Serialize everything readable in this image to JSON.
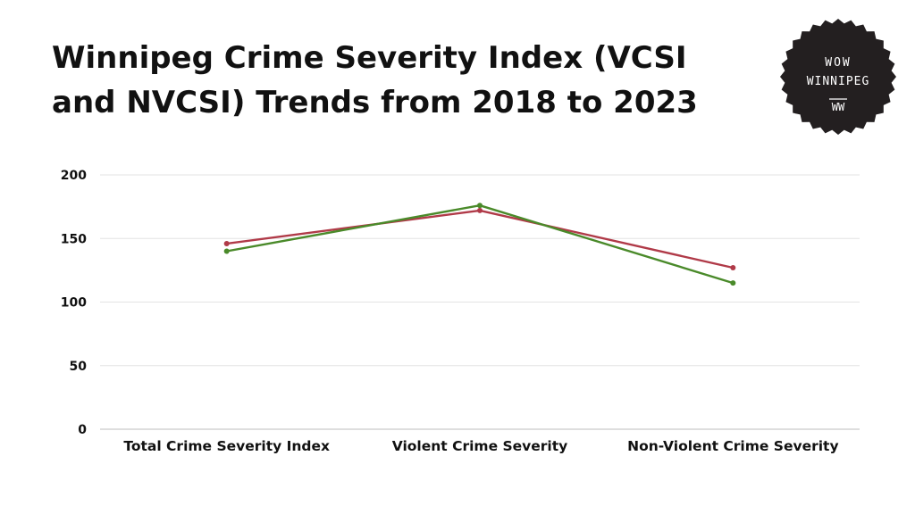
{
  "chart_data": {
    "type": "line",
    "title": "Winnipeg Crime Severity Index (VCSI and NVCSI) Trends from 2018 to 2023",
    "xlabel": "",
    "ylabel": "",
    "categories": [
      "Total Crime Severity Index",
      "Violent Crime Severity",
      "Non-Violent Crime Severity"
    ],
    "ylim": [
      0,
      200
    ],
    "yticks": [
      0,
      50,
      100,
      150,
      200
    ],
    "grid": true,
    "series": [
      {
        "color": "#b03a48",
        "values": [
          146,
          172,
          127
        ]
      },
      {
        "color": "#4a8a2a",
        "values": [
          140,
          176,
          115
        ]
      }
    ]
  },
  "badge": {
    "line1": "WOW",
    "line2": "WINNIPEG",
    "line3": "WW",
    "color": "#231f20"
  }
}
